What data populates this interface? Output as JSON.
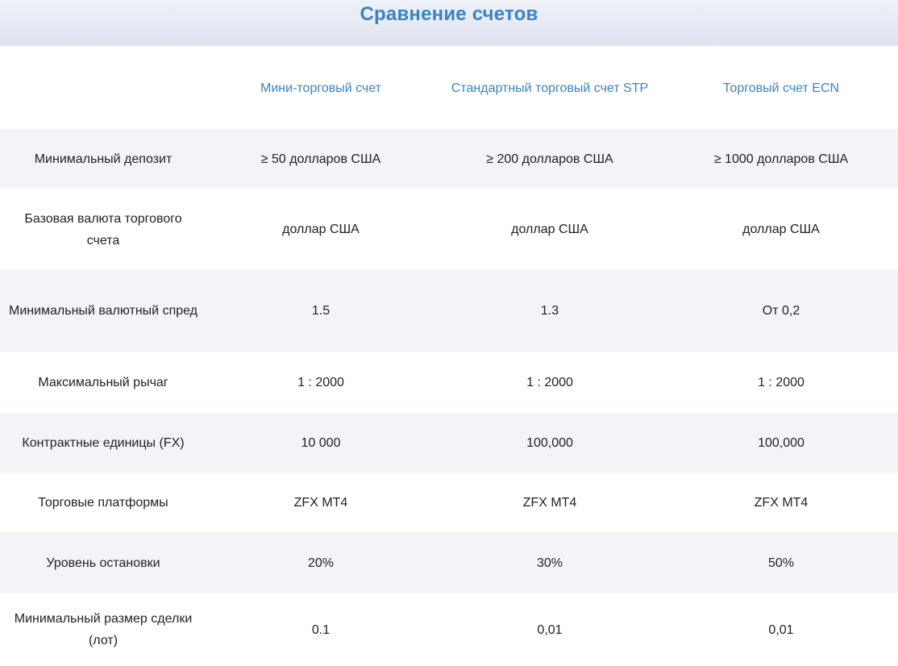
{
  "page": {
    "title": "Сравнение счетов"
  },
  "columns": [
    "",
    "Мини-торговый счет",
    "Стандартный торговый счет STP",
    "Торговый счет ECN"
  ],
  "rows": [
    {
      "label": "Минимальный депозит",
      "values": [
        "≥ 50 долларов США",
        "≥ 200 долларов США",
        "≥ 1000 долларов США"
      ]
    },
    {
      "label": "Базовая валюта торгового счета",
      "values": [
        "доллар США",
        "доллар США",
        "доллар США"
      ]
    },
    {
      "label": "Минимальный валютный спред",
      "values": [
        "1.5",
        "1.3",
        "От 0,2"
      ]
    },
    {
      "label": "Максимальный рычаг",
      "values": [
        "1 : 2000",
        "1 : 2000",
        "1 : 2000"
      ]
    },
    {
      "label": "Контрактные единицы (FX)",
      "values": [
        "10 000",
        "100,000",
        "100,000"
      ]
    },
    {
      "label": "Торговые платформы",
      "values": [
        "ZFX MT4",
        "ZFX MT4",
        "ZFX MT4"
      ]
    },
    {
      "label": "Уровень остановки",
      "values": [
        "20%",
        "30%",
        "50%"
      ]
    },
    {
      "label": "Минимальный размер сделки (лот)",
      "values": [
        "0.1",
        "0,01",
        "0,01"
      ]
    }
  ],
  "colors": {
    "accent": "#3a84c4",
    "row_alt": "#f3f4f8",
    "header_bg": "#e4e8f2",
    "text": "#222222"
  }
}
